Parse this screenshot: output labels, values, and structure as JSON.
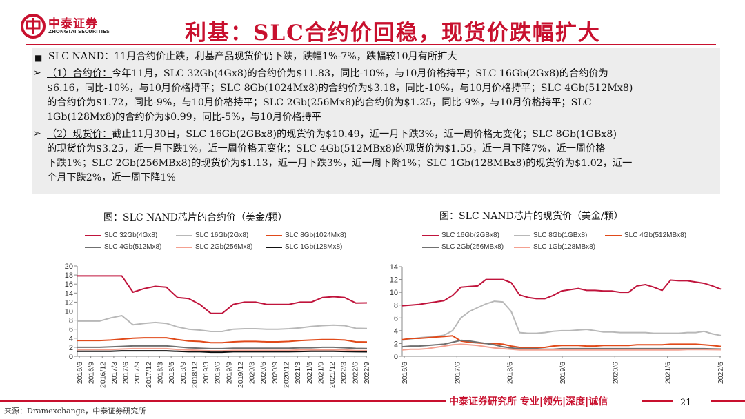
{
  "header": {
    "company_name": "中泰证券",
    "company_sub": "ZHONGTAI SECURITIES",
    "title": "利基：SLC合约价回稳，现货价跌幅扩大",
    "brand_color": "#c8102e"
  },
  "summary": {
    "headline": "SLC NAND：11月合约价止跌，利基产品现货价仍下跌，跌幅1%-7%，跌幅较10月有所扩大",
    "contract_label": "（1）合约价：",
    "contract_lines": [
      "今年11月，SLC 32Gb(4Gx8)的合约价为$11.83，同比-10%，与10月价格持平；SLC 16Gb(2Gx8)的合约价为",
      "$6.16，同比-10%，与10月价格持平；SLC 8Gb(1024Mx8)的合约价为$3.18，同比-10%，与10月价格持平；SLC 4Gb(512Mx8)",
      "的合约价为$1.72，同比-9%，与10月价格持平；SLC 2Gb(256Mx8)的合约价为$1.25，同比-9%，与10月价格持平；SLC",
      "1Gb(128Mx8)的合约价为$0.99，同比-5%，与10月价格持平"
    ],
    "spot_label": "（2）现货价：",
    "spot_lines": [
      "截止11月30日，SLC 16Gb(2GBx8)的现货价为$10.49，近一月下跌3%，近一周价格无变化；SLC 8Gb(1GBx8)",
      "的现货价为$3.25，近一月下跌1%，近一周价格无变化；SLC 4Gb(512MBx8)的现货价为$1.55，近一月下降7%，近一周价格",
      "下跌1%；SLC 2Gb(256MBx8)的现货价为$1.13，近一月下跌3%，近一周下降1%；SLC 1Gb(128MBx8)的现货价为$1.02，近一",
      "个月下跌2%，近一周下降1%"
    ]
  },
  "footer": {
    "tagline": "中泰证券研究所 专业|领先|深度|诚信",
    "page": "21",
    "source": "来源：Dramexchange，中泰证券研究所"
  },
  "chart_data": [
    {
      "type": "line",
      "title": "图：SLC NAND芯片的合约价（美金/颗）",
      "ylim": [
        0,
        20
      ],
      "yticks": [
        "0",
        "2",
        "4",
        "6",
        "8",
        "10",
        "12",
        "14",
        "16",
        "18",
        "20"
      ],
      "x_tick_labels": [
        "2016/6",
        "2016/9",
        "2016/12",
        "2017/3",
        "2017/6",
        "2017/9",
        "2017/12",
        "2018/3",
        "2018/6",
        "2018/9",
        "2018/12",
        "2019/3",
        "2019/6",
        "2019/9",
        "2019/12",
        "2020/3",
        "2020/6",
        "2020/9",
        "2020/12",
        "2021/3",
        "2021/6",
        "2021/9",
        "2021/12",
        "2022/3",
        "2022/6",
        "2022/9"
      ],
      "series": [
        {
          "name": "SLC 32Gb(4Gx8)",
          "color": "#c0143c",
          "values": [
            17.8,
            17.8,
            17.8,
            17.8,
            17.8,
            14.2,
            15.0,
            15.5,
            15.3,
            13.0,
            12.8,
            11.5,
            9.5,
            9.5,
            11.5,
            12.0,
            12.0,
            11.5,
            11.5,
            11.5,
            12.0,
            12.0,
            13.0,
            13.2,
            13.0,
            11.8,
            11.83
          ]
        },
        {
          "name": "SLC 16Gb(2Gx8)",
          "color": "#b8b8b8",
          "values": [
            7.8,
            7.8,
            7.8,
            8.5,
            9.0,
            7.0,
            7.3,
            7.5,
            7.3,
            6.5,
            6.0,
            5.8,
            5.5,
            5.5,
            6.0,
            6.1,
            6.1,
            6.0,
            6.0,
            6.1,
            6.3,
            6.6,
            6.8,
            6.9,
            6.8,
            6.2,
            6.16
          ]
        },
        {
          "name": "SLC 8Gb(1024Mx8)",
          "color": "#e04a1a",
          "values": [
            3.5,
            3.5,
            3.5,
            3.6,
            3.8,
            4.0,
            4.1,
            4.1,
            4.1,
            3.7,
            3.4,
            3.3,
            3.0,
            3.0,
            3.2,
            3.3,
            3.3,
            3.2,
            3.2,
            3.3,
            3.5,
            3.6,
            3.7,
            3.7,
            3.6,
            3.2,
            3.18
          ]
        },
        {
          "name": "SLC 4Gb(512Mx8)",
          "color": "#707070",
          "values": [
            2.0,
            2.0,
            2.0,
            2.1,
            2.2,
            2.3,
            2.3,
            2.3,
            2.3,
            2.1,
            1.9,
            1.8,
            1.7,
            1.7,
            1.8,
            1.8,
            1.8,
            1.8,
            1.8,
            1.8,
            1.9,
            1.9,
            2.0,
            2.0,
            1.9,
            1.75,
            1.72
          ]
        },
        {
          "name": "SLC 2Gb(256Mx8)",
          "color": "#f4a090",
          "values": [
            1.5,
            1.5,
            1.5,
            1.5,
            1.6,
            1.7,
            1.7,
            1.7,
            1.7,
            1.5,
            1.4,
            1.3,
            1.2,
            1.2,
            1.3,
            1.3,
            1.3,
            1.3,
            1.3,
            1.3,
            1.4,
            1.4,
            1.4,
            1.4,
            1.4,
            1.27,
            1.25
          ]
        },
        {
          "name": "SLC 1Gb(128Mx8)",
          "color": "#111111",
          "values": [
            1.1,
            1.1,
            1.1,
            1.1,
            1.2,
            1.2,
            1.2,
            1.2,
            1.2,
            1.1,
            1.0,
            1.0,
            0.9,
            0.9,
            1.0,
            1.0,
            1.0,
            1.0,
            1.0,
            1.0,
            1.05,
            1.1,
            1.1,
            1.1,
            1.05,
            1.0,
            0.99
          ]
        }
      ]
    },
    {
      "type": "line",
      "title": "图：SLC NAND芯片的现货价（美金/颗）",
      "ylim": [
        0,
        14
      ],
      "yticks": [
        "0",
        "2",
        "4",
        "6",
        "8",
        "10",
        "12",
        "14"
      ],
      "x_tick_labels": [
        "2016/6",
        "2017/6",
        "2018/6",
        "2019/6",
        "2020/6",
        "2021/6",
        "2022/6"
      ],
      "series": [
        {
          "name": "SLC 16Gb(2GBx8)",
          "color": "#c0143c",
          "values": [
            7.9,
            8.0,
            8.1,
            8.3,
            8.5,
            8.7,
            9.5,
            10.8,
            10.9,
            11.0,
            12.0,
            12.0,
            12.0,
            11.5,
            9.6,
            9.2,
            9.0,
            9.0,
            9.5,
            10.2,
            10.4,
            10.6,
            10.3,
            10.3,
            10.2,
            10.2,
            10.0,
            10.0,
            11.0,
            11.2,
            10.8,
            10.3,
            11.9,
            11.8,
            11.8,
            11.6,
            11.4,
            11.0,
            10.49
          ]
        },
        {
          "name": "SLC 8Gb(1GBx8)",
          "color": "#b8b8b8",
          "values": [
            2.5,
            2.7,
            2.9,
            3.0,
            3.1,
            3.3,
            4.0,
            6.0,
            7.0,
            7.6,
            8.2,
            8.6,
            8.5,
            7.0,
            3.7,
            3.6,
            3.6,
            3.7,
            3.9,
            4.0,
            4.0,
            4.1,
            4.2,
            4.0,
            3.8,
            3.8,
            3.7,
            3.7,
            3.7,
            3.7,
            3.6,
            3.6,
            3.6,
            3.6,
            3.7,
            3.7,
            3.9,
            3.5,
            3.25
          ]
        },
        {
          "name": "SLC 4Gb(512MBx8)",
          "color": "#e04a1a",
          "values": [
            2.6,
            2.8,
            2.8,
            2.9,
            3.0,
            3.1,
            3.2,
            2.4,
            2.2,
            2.1,
            2.0,
            2.0,
            1.9,
            1.6,
            1.4,
            1.4,
            1.4,
            1.4,
            1.6,
            1.7,
            1.7,
            1.7,
            1.6,
            1.6,
            1.7,
            1.7,
            1.7,
            1.7,
            1.8,
            1.8,
            1.8,
            1.8,
            1.9,
            1.9,
            1.9,
            1.9,
            1.8,
            1.7,
            1.55
          ]
        },
        {
          "name": "SLC 2Gb(256MBx8)",
          "color": "#707070",
          "values": [
            1.5,
            1.6,
            1.6,
            1.7,
            1.8,
            1.9,
            2.2,
            2.5,
            2.4,
            2.2,
            2.0,
            1.8,
            1.5,
            1.3,
            1.2,
            1.2,
            1.2,
            1.1,
            1.1,
            1.2,
            1.2,
            1.2,
            1.2,
            1.2,
            1.2,
            1.2,
            1.2,
            1.2,
            1.2,
            1.2,
            1.2,
            1.2,
            1.2,
            1.2,
            1.2,
            1.2,
            1.2,
            1.15,
            1.13
          ]
        },
        {
          "name": "SLC 1Gb(128MBx8)",
          "color": "#f4a090",
          "values": [
            1.0,
            1.1,
            1.1,
            1.2,
            1.4,
            1.6,
            1.8,
            1.9,
            1.8,
            1.7,
            1.5,
            1.3,
            1.2,
            1.1,
            1.0,
            1.0,
            1.0,
            1.0,
            1.0,
            1.0,
            1.0,
            1.0,
            1.0,
            1.0,
            1.0,
            1.0,
            1.0,
            1.0,
            1.0,
            1.0,
            1.0,
            1.0,
            1.0,
            1.0,
            1.05,
            1.05,
            1.05,
            1.03,
            1.02
          ]
        }
      ]
    }
  ]
}
